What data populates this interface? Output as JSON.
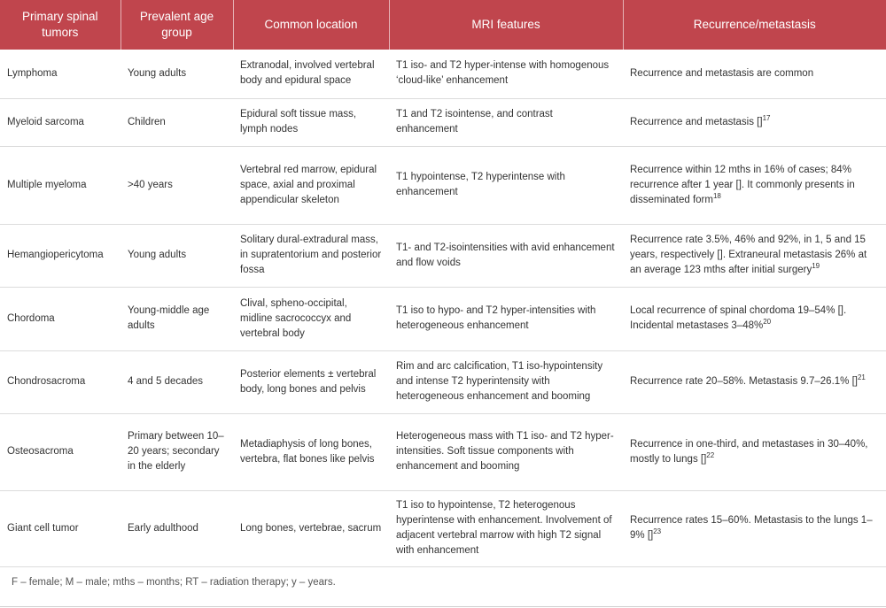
{
  "headers": [
    "Primary spinal tumors",
    "Prevalent age group",
    "Common location",
    "MRI features",
    "Recurrence/metastasis"
  ],
  "rows": [
    {
      "tumor": "Lymphoma",
      "age": "Young adults",
      "location": "Extranodal, involved vertebral body and epidural space",
      "mri": "T1 iso- and T2 hyper-intense with homogenous ‘cloud-like’ enhancement",
      "recurrence": "Recurrence and metastasis are common",
      "ref": ""
    },
    {
      "tumor": "Myeloid sarcoma",
      "age": "Children",
      "location": "Epidural soft tissue mass, lymph nodes",
      "mri": "T1 and T2 isointense, and contrast enhancement",
      "recurrence": "Recurrence and metastasis []",
      "ref": "17"
    },
    {
      "tumor": "Multiple myeloma",
      "age": ">40 years",
      "location": "Vertebral red marrow, epidural space, axial and proximal appendicular skeleton",
      "mri": "T1 hypointense, T2 hyperintense with enhancement",
      "recurrence": "Recurrence within 12 mths in 16% of cases; 84% recurrence after 1 year []. It commonly presents in disseminated form",
      "ref": "18"
    },
    {
      "tumor": "Hemangiopericytoma",
      "age": "Young adults",
      "location": "Solitary dural-extradural mass, in supratentorium and posterior fossa",
      "mri": "T1- and T2-isointensities with avid enhancement and flow voids",
      "recurrence": "Recurrence rate 3.5%, 46% and 92%, in 1, 5 and 15 years, respectively []. Extraneural metastasis 26% at an average 123 mths after initial surgery",
      "ref": "19"
    },
    {
      "tumor": "Chordoma",
      "age": "Young-middle age adults",
      "location": "Clival, spheno-occipital, midline sacrococcyx and vertebral body",
      "mri": "T1 iso to hypo- and T2 hyper-intensities with heterogeneous enhancement",
      "recurrence": "Local recurrence of spinal chordoma 19–54% []. Incidental metastases 3–48%",
      "ref": "20"
    },
    {
      "tumor": "Chondrosacroma",
      "age": "4 and 5 decades",
      "location": "Posterior elements ± vertebral body, long bones and pelvis",
      "mri": "Rim and arc calcification, T1 iso-hypointensity and intense T2 hyperintensity with heterogeneous enhancement and booming",
      "recurrence": "Recurrence rate 20–58%. Metastasis 9.7–26.1% []",
      "ref": "21"
    },
    {
      "tumor": "Osteosacroma",
      "age": "Primary between 10–20 years; secondary in the elderly",
      "location": "Metadiaphysis of long bones, vertebra, flat bones like pelvis",
      "mri": "Heterogeneous mass with T1 iso- and T2 hyper-intensities. Soft tissue components with enhancement and booming",
      "recurrence": "Recurrence in one-third, and metastases in 30–40%, mostly to lungs []",
      "ref": "22"
    },
    {
      "tumor": "Giant cell tumor",
      "age": "Early adulthood",
      "location": "Long bones, vertebrae, sacrum",
      "mri": "T1 iso to hypointense, T2 heterogenous hyperintense with enhancement. Involvement of adjacent vertebral marrow with high T2 signal with enhancement",
      "recurrence": "Recurrence rates 15–60%. Metastasis to the lungs 1–9% []",
      "ref": "23"
    }
  ],
  "footnote": "F – female; M – male; mths – months; RT – radiation therapy; y – years."
}
